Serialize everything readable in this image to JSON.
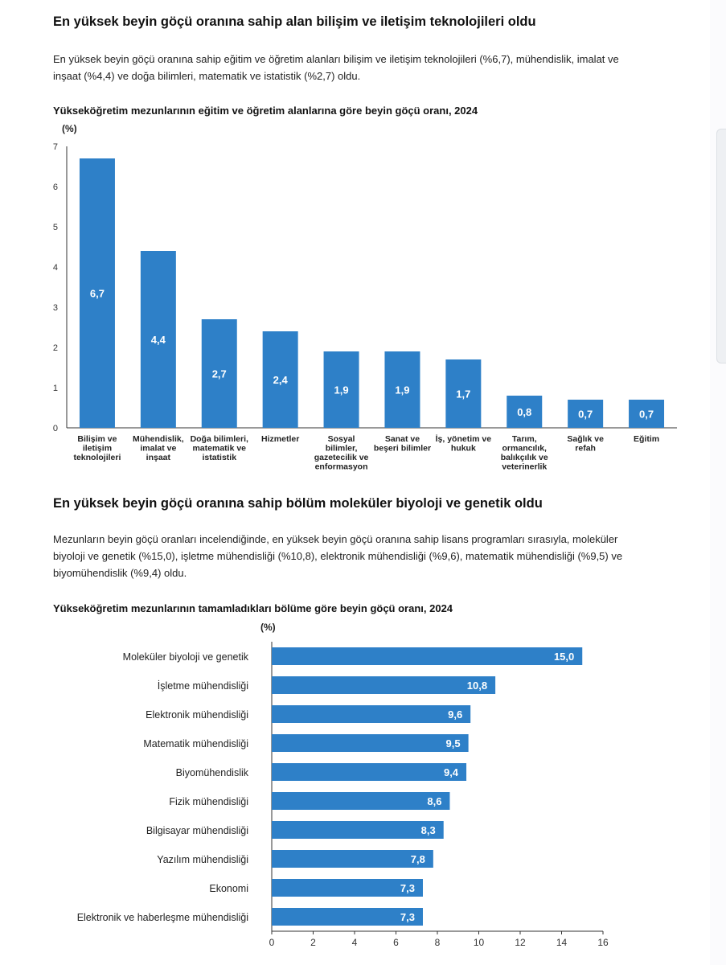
{
  "section1": {
    "heading": "En yüksek beyin göçü oranına sahip alan bilişim ve iletişim teknolojileri oldu",
    "paragraph_lines": [
      "En yüksek beyin göçü oranına sahip eğitim ve öğretim alanları bilişim ve iletişim teknolojileri (%6,7), mühendislik, imalat ve",
      "inşaat (%4,4) ve doğa bilimleri, matematik ve istatistik (%2,7) oldu."
    ]
  },
  "section2": {
    "heading": "En yüksek beyin göçü oranına sahip bölüm moleküler biyoloji ve genetik oldu",
    "paragraph_lines": [
      "Mezunların beyin göçü oranları incelendiğinde, en yüksek beyin göçü oranına sahip lisans programları sırasıyla, moleküler",
      "biyoloji ve genetik (%15,0), işletme mühendisliği (%10,8), elektronik mühendisliği (%9,6), matematik mühendisliği (%9,5) ve",
      "biyomühendislik (%9,4) oldu."
    ]
  },
  "colors": {
    "bar": "#2e80c8",
    "axis": "#333333"
  },
  "chart_data": [
    {
      "type": "bar",
      "orientation": "vertical",
      "title": "Yükseköğretim mezunlarının eğitim ve öğretim alanlarına göre beyin göçü oranı, 2024",
      "ylabel": "(%)",
      "ylim": [
        0,
        7
      ],
      "yticks": [
        "0",
        "1",
        "2",
        "3",
        "4",
        "5",
        "6",
        "7"
      ],
      "categories": [
        [
          "Bilişim ve",
          "iletişim",
          "teknolojileri"
        ],
        [
          "Mühendislik,",
          "imalat ve",
          "inşaat"
        ],
        [
          "Doğa bilimleri,",
          "matematik ve",
          "istatistik"
        ],
        [
          "Hizmetler"
        ],
        [
          "Sosyal",
          "bilimler,",
          "gazetecilik ve",
          "enformasyon"
        ],
        [
          "Sanat ve",
          "beşeri bilimler"
        ],
        [
          "İş, yönetim ve",
          "hukuk"
        ],
        [
          "Tarım,",
          "ormancılık,",
          "balıkçılık ve",
          "veterinerlik"
        ],
        [
          "Sağlık ve",
          "refah"
        ],
        [
          "Eğitim"
        ]
      ],
      "values": [
        6.7,
        4.4,
        2.7,
        2.4,
        1.9,
        1.9,
        1.7,
        0.8,
        0.7,
        0.7
      ],
      "value_labels": [
        "6,7",
        "4,4",
        "2,7",
        "2,4",
        "1,9",
        "1,9",
        "1,7",
        "0,8",
        "0,7",
        "0,7"
      ],
      "grid": false
    },
    {
      "type": "bar",
      "orientation": "horizontal",
      "title": "Yükseköğretim mezunlarının tamamladıkları bölüme göre beyin göçü oranı, 2024",
      "xlabel": "(%)",
      "xlim": [
        0,
        16
      ],
      "xticks": [
        "0",
        "2",
        "4",
        "6",
        "8",
        "10",
        "12",
        "14",
        "16"
      ],
      "categories": [
        "Moleküler biyoloji ve genetik",
        "İşletme mühendisliği",
        "Elektronik mühendisliği",
        "Matematik mühendisliği",
        "Biyomühendislik",
        "Fizik mühendisliği",
        "Bilgisayar mühendisliği",
        "Yazılım mühendisliği",
        "Ekonomi",
        "Elektronik ve haberleşme mühendisliği"
      ],
      "values": [
        15.0,
        10.8,
        9.6,
        9.5,
        9.4,
        8.6,
        8.3,
        7.8,
        7.3,
        7.3
      ],
      "value_labels": [
        "15,0",
        "10,8",
        "9,6",
        "9,5",
        "9,4",
        "8,6",
        "8,3",
        "7,8",
        "7,3",
        "7,3"
      ],
      "grid": false
    }
  ]
}
